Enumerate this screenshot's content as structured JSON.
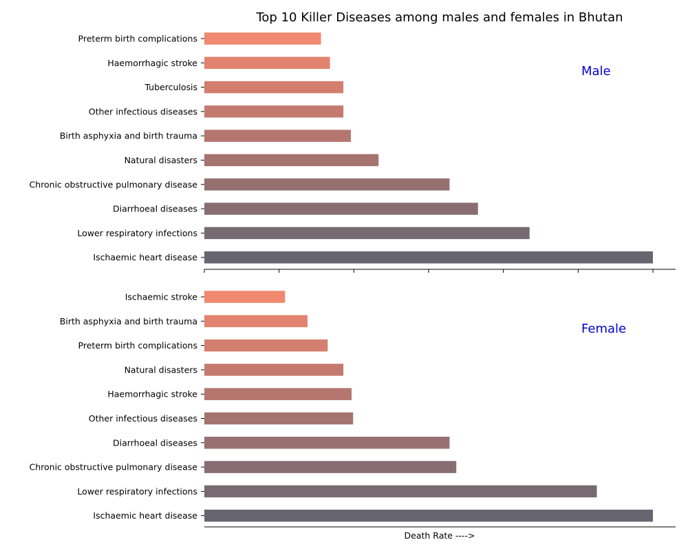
{
  "chart_data": {
    "type": "bar",
    "orientation": "horizontal",
    "title": "Top 10 Killer Diseases among males and females in Bhutan",
    "xlabel": "Death Rate ---->",
    "panel_label_color": "#0000cc",
    "panels": [
      {
        "label": "Male",
        "categories": [
          "Preterm birth complications",
          "Haemorrhagic stroke",
          "Tuberculosis",
          "Other infectious diseases",
          "Birth asphyxia and birth trauma",
          "Natural disasters",
          "Chronic obstructive pulmonary disease",
          "Diarrhoeal diseases",
          "Lower respiratory infections",
          "Ischaemic heart disease"
        ],
        "values": [
          15.6,
          16.8,
          18.6,
          18.6,
          19.6,
          23.3,
          32.8,
          36.6,
          43.5,
          60.0
        ],
        "colors": [
          "#f0896f",
          "#e2836f",
          "#d37e6f",
          "#c57a70",
          "#b57670",
          "#a57370",
          "#967071",
          "#876d71",
          "#776a71",
          "#676670"
        ]
      },
      {
        "label": "Female",
        "categories": [
          "Ischaemic stroke",
          "Birth asphyxia and birth trauma",
          "Preterm birth complications",
          "Natural disasters",
          "Haemorrhagic stroke",
          "Other infectious diseases",
          "Diarrhoeal diseases",
          "Chronic obstructive pulmonary disease",
          "Lower respiratory infections",
          "Ischaemic heart disease"
        ],
        "values": [
          10.8,
          13.8,
          16.5,
          18.6,
          19.7,
          19.9,
          32.8,
          33.7,
          52.5,
          60.0
        ],
        "colors": [
          "#f0896f",
          "#e2836f",
          "#d37e6f",
          "#c57a70",
          "#b57670",
          "#a57370",
          "#967071",
          "#876d71",
          "#776a71",
          "#676670"
        ]
      }
    ],
    "xlim": [
      0,
      63
    ],
    "x_ticks": [
      0,
      10,
      20,
      30,
      40,
      50,
      60
    ],
    "x_tick_labels_shown": false
  }
}
